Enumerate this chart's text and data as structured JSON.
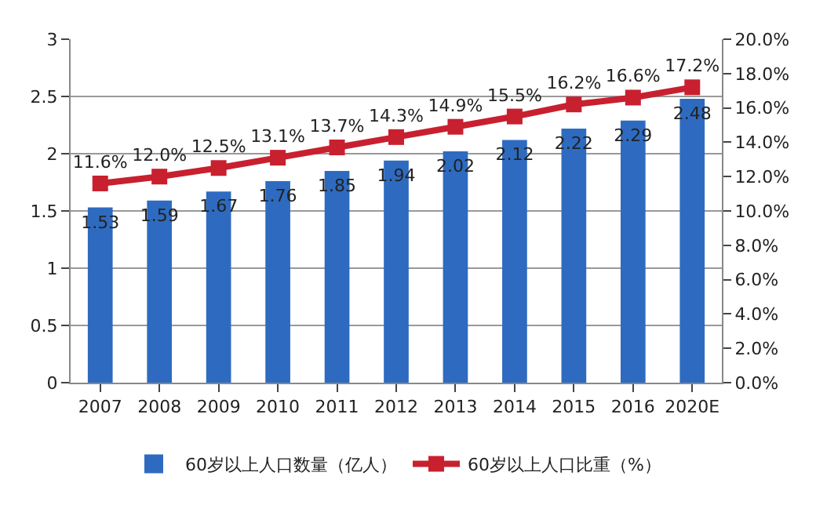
{
  "chart_data": {
    "type": "bar",
    "categories": [
      "2007",
      "2008",
      "2009",
      "2010",
      "2011",
      "2012",
      "2013",
      "2014",
      "2015",
      "2016",
      "2020E"
    ],
    "series": [
      {
        "name": "60岁以上人口数量（亿人）",
        "color": "#2e6bc0",
        "values": [
          1.53,
          1.59,
          1.67,
          1.76,
          1.85,
          1.94,
          2.02,
          2.12,
          2.22,
          2.29,
          2.48
        ],
        "value_labels": [
          "1.53",
          "1.59",
          "1.67",
          "1.76",
          "1.85",
          "1.94",
          "2.02",
          "2.12",
          "2.22",
          "2.29",
          "2.48"
        ]
      },
      {
        "name": "60岁以上人口比重（%）",
        "type": "line",
        "axis": "y2",
        "color": "#c8202f",
        "marker": "square",
        "values": [
          11.6,
          12.0,
          12.5,
          13.1,
          13.7,
          14.3,
          14.9,
          15.5,
          16.2,
          16.6,
          17.2
        ],
        "value_labels": [
          "11.6%",
          "12.0%",
          "12.5%",
          "13.1%",
          "13.7%",
          "14.3%",
          "14.9%",
          "15.5%",
          "16.2%",
          "16.6%",
          "17.2%"
        ]
      }
    ],
    "ylim": [
      0,
      3
    ],
    "yticks": [
      0,
      0.5,
      1,
      1.5,
      2,
      2.5,
      3
    ],
    "y2lim": [
      0,
      20
    ],
    "y2ticks": [
      {
        "value": 0,
        "label": "0.0%"
      },
      {
        "value": 2,
        "label": "2.0%"
      },
      {
        "value": 4,
        "label": "4.0%"
      },
      {
        "value": 6,
        "label": "6.0%"
      },
      {
        "value": 8,
        "label": "8.0%"
      },
      {
        "value": 10,
        "label": "10.0%"
      },
      {
        "value": 12,
        "label": "12.0%"
      },
      {
        "value": 14,
        "label": "14.0%"
      },
      {
        "value": 16,
        "label": "16.0%"
      },
      {
        "value": 18,
        "label": "18.0%"
      },
      {
        "value": 20,
        "label": "20.0%"
      }
    ],
    "grid": "y",
    "legend": "bottom"
  }
}
